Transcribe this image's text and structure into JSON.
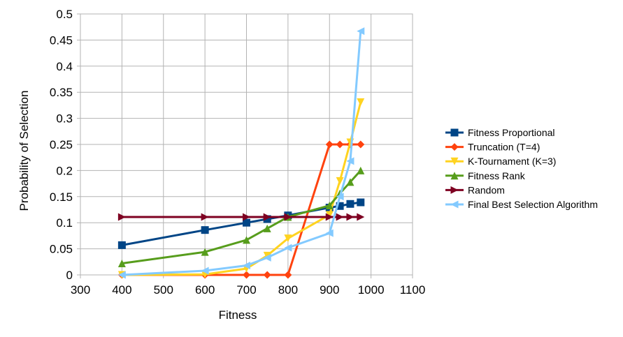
{
  "chart_data": {
    "type": "line",
    "xlabel": "Fitness",
    "ylabel": "Probability of Selection",
    "xlim": [
      300,
      1100
    ],
    "ylim": [
      0,
      0.5
    ],
    "x_ticks": [
      "300",
      "400",
      "500",
      "600",
      "700",
      "800",
      "900",
      "1000",
      "1100"
    ],
    "y_ticks": [
      "0",
      "0.05",
      "0.1",
      "0.15",
      "0.2",
      "0.25",
      "0.3",
      "0.35",
      "0.4",
      "0.45",
      "0.5"
    ],
    "grid": true,
    "legend_position": "right",
    "series": [
      {
        "name": "Fitness Proportional",
        "color": "#004586",
        "marker": "square",
        "x": [
          400,
          600,
          700,
          750,
          800,
          900,
          925,
          950,
          975
        ],
        "y": [
          0.057,
          0.086,
          0.1,
          0.107,
          0.114,
          0.129,
          0.132,
          0.136,
          0.139
        ]
      },
      {
        "name": "Truncation (T=4)",
        "color": "#ff420e",
        "marker": "diamond",
        "x": [
          400,
          600,
          700,
          750,
          800,
          900,
          925,
          950,
          975
        ],
        "y": [
          0,
          0,
          0,
          0,
          0,
          0.25,
          0.25,
          0.25,
          0.25
        ]
      },
      {
        "name": "K-Tournament (K=3)",
        "color": "#ffd320",
        "marker": "triangle-down",
        "x": [
          400,
          600,
          700,
          750,
          800,
          900,
          925,
          950,
          975
        ],
        "y": [
          0,
          0.001,
          0.012,
          0.037,
          0.07,
          0.115,
          0.18,
          0.254,
          0.331
        ]
      },
      {
        "name": "Fitness Rank",
        "color": "#579d1c",
        "marker": "triangle-up",
        "x": [
          400,
          600,
          700,
          750,
          800,
          900,
          925,
          950,
          975
        ],
        "y": [
          0.022,
          0.044,
          0.067,
          0.089,
          0.111,
          0.133,
          0.156,
          0.178,
          0.2
        ]
      },
      {
        "name": "Random",
        "color": "#7e0021",
        "marker": "triangle-right",
        "x": [
          400,
          600,
          700,
          750,
          800,
          900,
          925,
          950,
          975
        ],
        "y": [
          0.111,
          0.111,
          0.111,
          0.111,
          0.111,
          0.111,
          0.111,
          0.111,
          0.111
        ]
      },
      {
        "name": "Final Best Selection Algorithm",
        "color": "#83caff",
        "marker": "triangle-left",
        "x": [
          400,
          600,
          700,
          750,
          800,
          900,
          925,
          950,
          975
        ],
        "y": [
          0,
          0.008,
          0.018,
          0.033,
          0.052,
          0.08,
          0.15,
          0.218,
          0.467
        ]
      }
    ]
  }
}
